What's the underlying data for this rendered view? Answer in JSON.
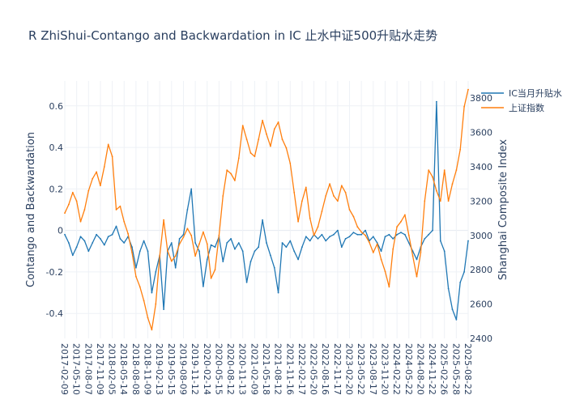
{
  "chart_data": {
    "type": "line",
    "title": "R    ZhiShui-Contango and Backwardation in IC    止水中证500升贴水走势",
    "ylabel_left": "Contango and Backwardation",
    "ylabel_right": "Shanghai Composite Index",
    "x_ticks": [
      "2017-02-09",
      "2017-05-10",
      "2017-08-07",
      "2017-11-09",
      "2018-02-05",
      "2018-05-14",
      "2018-08-08",
      "2018-11-09",
      "2019-02-13",
      "2019-05-15",
      "2019-08-09",
      "2019-11-12",
      "2020-02-14",
      "2020-05-15",
      "2020-08-12",
      "2020-11-13",
      "2021-02-09",
      "2021-05-18",
      "2021-08-12",
      "2021-11-16",
      "2022-02-17",
      "2022-05-20",
      "2022-08-16",
      "2022-11-17",
      "2023-02-20",
      "2023-05-22",
      "2023-08-17",
      "2023-11-20",
      "2024-02-22",
      "2024-05-22",
      "2024-08-20",
      "2024-11-22",
      "2025-02-26",
      "2025-05-28",
      "2025-08-22"
    ],
    "yticks_left": [
      "-0.4",
      "-0.2",
      "0",
      "0.2",
      "0.4",
      "0.6"
    ],
    "yticks_right": [
      "2400",
      "2600",
      "2800",
      "3000",
      "3200",
      "3400",
      "3600",
      "3800"
    ],
    "ylim_left": [
      -0.52,
      0.72
    ],
    "ylim_right": [
      2400,
      3900
    ],
    "legend_position": "top-right",
    "series": [
      {
        "name": "IC当月升贴水",
        "axis": "left",
        "color": "#1f77b4",
        "values": [
          -0.02,
          -0.06,
          -0.12,
          -0.08,
          -0.03,
          -0.05,
          -0.1,
          -0.06,
          -0.02,
          -0.04,
          -0.07,
          -0.03,
          -0.02,
          0.02,
          -0.04,
          -0.06,
          -0.03,
          -0.08,
          -0.18,
          -0.1,
          -0.05,
          -0.1,
          -0.3,
          -0.2,
          -0.12,
          -0.38,
          -0.1,
          -0.06,
          -0.18,
          -0.04,
          -0.02,
          0.1,
          0.2,
          -0.06,
          -0.1,
          -0.27,
          -0.14,
          -0.07,
          -0.08,
          -0.03,
          -0.15,
          -0.06,
          -0.04,
          -0.09,
          -0.06,
          -0.1,
          -0.25,
          -0.15,
          -0.1,
          -0.08,
          0.05,
          -0.06,
          -0.12,
          -0.18,
          -0.3,
          -0.06,
          -0.08,
          -0.05,
          -0.1,
          -0.14,
          -0.08,
          -0.03,
          -0.05,
          -0.02,
          -0.04,
          -0.02,
          -0.05,
          -0.03,
          -0.02,
          0.0,
          -0.08,
          -0.04,
          -0.03,
          -0.01,
          -0.02,
          -0.02,
          0.0,
          -0.05,
          -0.03,
          -0.06,
          -0.1,
          -0.03,
          -0.02,
          -0.04,
          -0.02,
          -0.01,
          -0.02,
          -0.06,
          -0.1,
          -0.14,
          -0.08,
          -0.04,
          -0.02,
          0.0,
          0.62,
          -0.05,
          -0.1,
          -0.28,
          -0.38,
          -0.43,
          -0.25,
          -0.2,
          -0.05
        ]
      },
      {
        "name": "上证指数",
        "axis": "right",
        "color": "#ff7f0e",
        "values": [
          3130,
          3180,
          3250,
          3200,
          3080,
          3150,
          3260,
          3330,
          3370,
          3290,
          3400,
          3530,
          3460,
          3150,
          3170,
          3080,
          3010,
          2900,
          2760,
          2700,
          2620,
          2520,
          2450,
          2600,
          2880,
          3090,
          2910,
          2850,
          2880,
          2950,
          2990,
          3040,
          3000,
          2880,
          2950,
          3020,
          2950,
          2750,
          2800,
          3000,
          3230,
          3380,
          3360,
          3320,
          3450,
          3640,
          3560,
          3480,
          3460,
          3560,
          3670,
          3590,
          3520,
          3620,
          3660,
          3560,
          3510,
          3420,
          3250,
          3080,
          3200,
          3280,
          3100,
          3000,
          3050,
          3140,
          3230,
          3300,
          3230,
          3200,
          3290,
          3250,
          3150,
          3110,
          3050,
          3020,
          3000,
          2960,
          2900,
          2950,
          2860,
          2790,
          2700,
          2920,
          3050,
          3080,
          3120,
          3000,
          2880,
          2760,
          2900,
          3200,
          3380,
          3340,
          3260,
          3200,
          3380,
          3200,
          3300,
          3380,
          3500,
          3750,
          3850
        ]
      }
    ]
  }
}
